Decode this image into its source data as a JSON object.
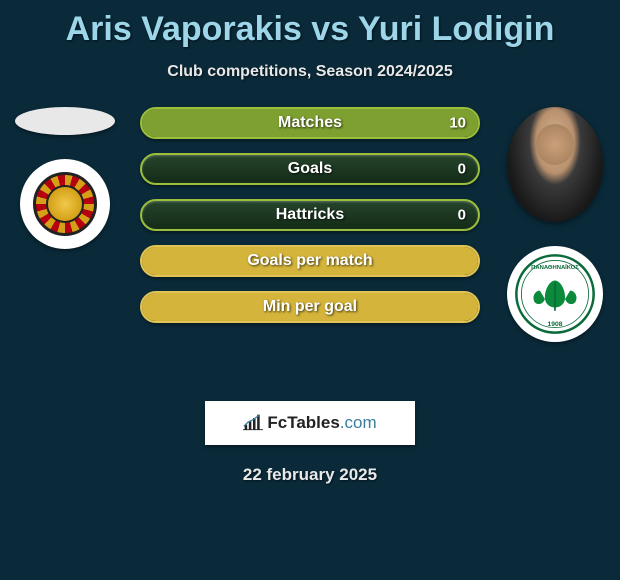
{
  "title": "Aris Vaporakis vs Yuri Lodigin",
  "subtitle": "Club competitions, Season 2024/2025",
  "date": "22 february 2025",
  "brand": {
    "name": "FcTables",
    "domain": ".com"
  },
  "player_left": {
    "name": "Aris Vaporakis",
    "club_id": "club1"
  },
  "player_right": {
    "name": "Yuri Lodigin",
    "club_id": "panathinaikos"
  },
  "bars": [
    {
      "label": "Matches",
      "left": "",
      "right": "10",
      "left_pct": 0,
      "right_pct": 100,
      "color": "#6a8a2a",
      "border": "#9bbf3b",
      "fill": "#7da030"
    },
    {
      "label": "Goals",
      "left": "",
      "right": "0",
      "left_pct": 0,
      "right_pct": 0,
      "color": "#2a4a10",
      "border": "#9bbf3b",
      "fill": "#7da030"
    },
    {
      "label": "Hattricks",
      "left": "",
      "right": "0",
      "left_pct": 0,
      "right_pct": 0,
      "color": "#2a4a10",
      "border": "#9bbf3b",
      "fill": "#7da030"
    },
    {
      "label": "Goals per match",
      "left": "",
      "right": "",
      "left_pct": 0,
      "right_pct": 100,
      "color": "#c8a628",
      "border": "#e0c456",
      "fill": "#d4b43a"
    },
    {
      "label": "Min per goal",
      "left": "",
      "right": "",
      "left_pct": 0,
      "right_pct": 100,
      "color": "#c8a628",
      "border": "#e0c456",
      "fill": "#d4b43a"
    }
  ],
  "palette": {
    "background": "#0a2a3a",
    "title_color": "#9cd6e8",
    "text_color": "#e8e8e8"
  }
}
